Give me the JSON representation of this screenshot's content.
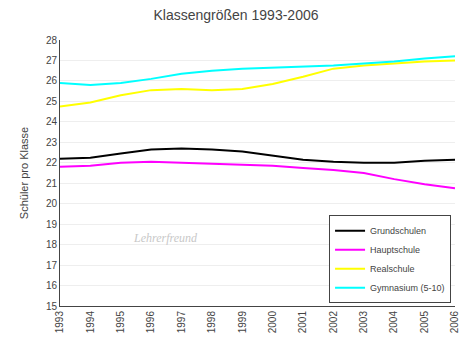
{
  "chart_data": {
    "type": "line",
    "title": "Klassengrößen 1993-2006",
    "ylabel": "Schüler pro Klasse",
    "x": [
      1993,
      1994,
      1995,
      1996,
      1997,
      1998,
      1999,
      2000,
      2001,
      2002,
      2003,
      2004,
      2005,
      2006
    ],
    "series": [
      {
        "name": "Grundschulen",
        "color": "#000000",
        "values": [
          22.2,
          22.25,
          22.45,
          22.65,
          22.7,
          22.65,
          22.55,
          22.35,
          22.15,
          22.05,
          22.0,
          22.0,
          22.1,
          22.15
        ]
      },
      {
        "name": "Hauptschule",
        "color": "#ff00ff",
        "values": [
          21.8,
          21.85,
          22.0,
          22.05,
          22.0,
          21.95,
          21.9,
          21.85,
          21.75,
          21.65,
          21.5,
          21.2,
          20.95,
          20.75
        ]
      },
      {
        "name": "Realschule",
        "color": "#ffff00",
        "values": [
          24.75,
          24.95,
          25.3,
          25.55,
          25.6,
          25.55,
          25.6,
          25.85,
          26.2,
          26.6,
          26.75,
          26.85,
          26.95,
          27.0
        ]
      },
      {
        "name": "Gymnasium (5-10)",
        "color": "#00ffff",
        "values": [
          25.9,
          25.8,
          25.9,
          26.1,
          26.35,
          26.5,
          26.6,
          26.65,
          26.7,
          26.75,
          26.85,
          26.95,
          27.1,
          27.2
        ]
      }
    ],
    "xlim": [
      1993,
      2006
    ],
    "xticks": [
      1993,
      1994,
      1995,
      1996,
      1997,
      1998,
      1999,
      2000,
      2001,
      2002,
      2003,
      2004,
      2005,
      2006
    ],
    "ylim": [
      15,
      28
    ],
    "yticks": [
      15,
      16,
      17,
      18,
      19,
      20,
      21,
      22,
      23,
      24,
      25,
      26,
      27,
      28
    ],
    "grid": true,
    "legend": "lower right",
    "annotations": [
      {
        "text": "Lehrerfreund",
        "color": "#c8c8c8"
      }
    ]
  }
}
